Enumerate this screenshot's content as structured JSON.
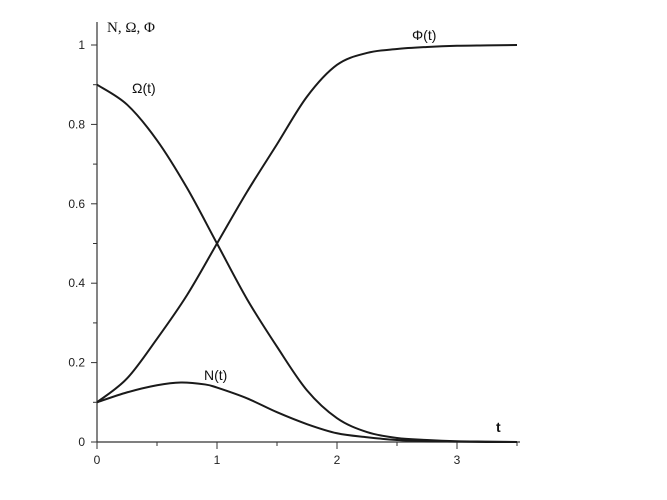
{
  "chart_data": {
    "type": "line",
    "title": "",
    "xlabel": "t",
    "ylabel": "N, Ω, Φ",
    "xlim": [
      0,
      3.5
    ],
    "ylim": [
      0,
      1
    ],
    "x_ticks": [
      0,
      1,
      2,
      3
    ],
    "x_tick_labels": [
      "0",
      "1",
      "2",
      "3"
    ],
    "y_ticks": [
      0,
      0.2,
      0.4,
      0.6,
      0.8,
      1
    ],
    "y_tick_labels": [
      "0",
      "0.2",
      "0.4",
      "0.6",
      "0.8",
      "1"
    ],
    "grid": false,
    "series": [
      {
        "name": "Φ(t)",
        "x": [
          0,
          0.25,
          0.5,
          0.75,
          1.0,
          1.25,
          1.5,
          1.75,
          2.0,
          2.25,
          2.5,
          2.75,
          3.0,
          3.25,
          3.5
        ],
        "y": [
          0.1,
          0.16,
          0.26,
          0.37,
          0.5,
          0.63,
          0.75,
          0.87,
          0.95,
          0.98,
          0.99,
          0.995,
          0.998,
          0.999,
          1.0
        ]
      },
      {
        "name": "Ω(t)",
        "x": [
          0,
          0.25,
          0.5,
          0.75,
          1.0,
          1.25,
          1.5,
          1.75,
          2.0,
          2.25,
          2.5,
          2.75,
          3.0,
          3.25,
          3.5
        ],
        "y": [
          0.9,
          0.85,
          0.76,
          0.64,
          0.5,
          0.36,
          0.24,
          0.13,
          0.06,
          0.025,
          0.01,
          0.005,
          0.002,
          0.001,
          0.0
        ]
      },
      {
        "name": "N(t)",
        "x": [
          0,
          0.25,
          0.5,
          0.7,
          0.9,
          1.0,
          1.25,
          1.5,
          1.75,
          2.0,
          2.25,
          2.5,
          2.75,
          3.0,
          3.25,
          3.5
        ],
        "y": [
          0.1,
          0.125,
          0.143,
          0.15,
          0.145,
          0.137,
          0.11,
          0.075,
          0.045,
          0.022,
          0.012,
          0.005,
          0.002,
          0.001,
          0.0,
          0.0
        ]
      }
    ]
  }
}
